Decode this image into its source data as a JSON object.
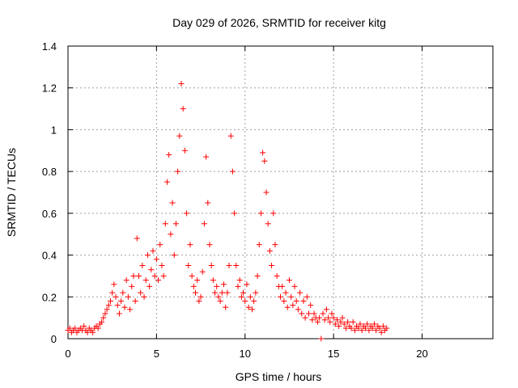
{
  "chart_data": {
    "type": "scatter",
    "title": "Day 029 of 2026, SRMTID for receiver kitg",
    "xlabel": "GPS time / hours",
    "ylabel": "SRMTID / TECUs",
    "xlim": [
      0,
      24
    ],
    "ylim": [
      0,
      1.4
    ],
    "x_ticks": [
      0,
      5,
      10,
      15,
      20
    ],
    "x_tick_labels": [
      "0",
      "5",
      "10",
      "15",
      "20"
    ],
    "y_ticks": [
      0,
      0.2,
      0.4,
      0.6,
      0.8,
      1,
      1.2,
      1.4
    ],
    "y_tick_labels": [
      "0",
      "0.2",
      "0.4",
      "0.6",
      "0.8",
      "1",
      "1.2",
      "1.4"
    ],
    "grid": true,
    "marker": "+",
    "color": "#ff0000",
    "series": [
      {
        "name": "SRMTID",
        "points": [
          [
            0.0,
            0.04
          ],
          [
            0.1,
            0.05
          ],
          [
            0.2,
            0.03
          ],
          [
            0.3,
            0.04
          ],
          [
            0.4,
            0.05
          ],
          [
            0.5,
            0.03
          ],
          [
            0.6,
            0.04
          ],
          [
            0.7,
            0.05
          ],
          [
            0.8,
            0.04
          ],
          [
            0.9,
            0.06
          ],
          [
            1.0,
            0.04
          ],
          [
            1.1,
            0.03
          ],
          [
            1.2,
            0.05
          ],
          [
            1.3,
            0.04
          ],
          [
            1.4,
            0.03
          ],
          [
            1.5,
            0.05
          ],
          [
            1.6,
            0.06
          ],
          [
            1.7,
            0.05
          ],
          [
            1.8,
            0.07
          ],
          [
            1.9,
            0.08
          ],
          [
            2.0,
            0.1
          ],
          [
            2.1,
            0.12
          ],
          [
            2.2,
            0.14
          ],
          [
            2.3,
            0.16
          ],
          [
            2.4,
            0.18
          ],
          [
            2.5,
            0.22
          ],
          [
            2.6,
            0.26
          ],
          [
            2.7,
            0.2
          ],
          [
            2.8,
            0.16
          ],
          [
            2.9,
            0.12
          ],
          [
            3.0,
            0.18
          ],
          [
            3.1,
            0.22
          ],
          [
            3.2,
            0.15
          ],
          [
            3.3,
            0.28
          ],
          [
            3.4,
            0.2
          ],
          [
            3.5,
            0.14
          ],
          [
            3.6,
            0.25
          ],
          [
            3.7,
            0.3
          ],
          [
            3.8,
            0.18
          ],
          [
            3.9,
            0.48
          ],
          [
            4.0,
            0.3
          ],
          [
            4.1,
            0.22
          ],
          [
            4.2,
            0.35
          ],
          [
            4.3,
            0.2
          ],
          [
            4.4,
            0.28
          ],
          [
            4.5,
            0.4
          ],
          [
            4.6,
            0.25
          ],
          [
            4.7,
            0.33
          ],
          [
            4.8,
            0.42
          ],
          [
            4.9,
            0.3
          ],
          [
            5.0,
            0.38
          ],
          [
            5.1,
            0.28
          ],
          [
            5.2,
            0.45
          ],
          [
            5.3,
            0.35
          ],
          [
            5.4,
            0.3
          ],
          [
            5.5,
            0.55
          ],
          [
            5.6,
            0.75
          ],
          [
            5.7,
            0.88
          ],
          [
            5.8,
            0.5
          ],
          [
            5.9,
            0.65
          ],
          [
            6.0,
            0.4
          ],
          [
            6.1,
            0.55
          ],
          [
            6.2,
            0.8
          ],
          [
            6.3,
            0.97
          ],
          [
            6.4,
            1.22
          ],
          [
            6.5,
            1.1
          ],
          [
            6.6,
            0.9
          ],
          [
            6.7,
            0.6
          ],
          [
            6.8,
            0.35
          ],
          [
            6.9,
            0.45
          ],
          [
            7.0,
            0.3
          ],
          [
            7.1,
            0.25
          ],
          [
            7.2,
            0.22
          ],
          [
            7.3,
            0.28
          ],
          [
            7.4,
            0.18
          ],
          [
            7.5,
            0.2
          ],
          [
            7.6,
            0.32
          ],
          [
            7.7,
            0.55
          ],
          [
            7.8,
            0.87
          ],
          [
            7.9,
            0.65
          ],
          [
            8.0,
            0.45
          ],
          [
            8.1,
            0.35
          ],
          [
            8.2,
            0.28
          ],
          [
            8.3,
            0.22
          ],
          [
            8.4,
            0.25
          ],
          [
            8.5,
            0.2
          ],
          [
            8.6,
            0.18
          ],
          [
            8.7,
            0.22
          ],
          [
            8.8,
            0.26
          ],
          [
            8.9,
            0.15
          ],
          [
            9.0,
            0.22
          ],
          [
            9.1,
            0.35
          ],
          [
            9.2,
            0.97
          ],
          [
            9.3,
            0.8
          ],
          [
            9.4,
            0.6
          ],
          [
            9.5,
            0.35
          ],
          [
            9.6,
            0.25
          ],
          [
            9.7,
            0.28
          ],
          [
            9.8,
            0.2
          ],
          [
            9.9,
            0.22
          ],
          [
            10.0,
            0.18
          ],
          [
            10.1,
            0.26
          ],
          [
            10.2,
            0.15
          ],
          [
            10.3,
            0.2
          ],
          [
            10.4,
            0.14
          ],
          [
            10.5,
            0.18
          ],
          [
            10.6,
            0.22
          ],
          [
            10.7,
            0.3
          ],
          [
            10.8,
            0.45
          ],
          [
            10.9,
            0.6
          ],
          [
            11.0,
            0.89
          ],
          [
            11.1,
            0.85
          ],
          [
            11.2,
            0.7
          ],
          [
            11.3,
            0.55
          ],
          [
            11.4,
            0.42
          ],
          [
            11.5,
            0.35
          ],
          [
            11.6,
            0.6
          ],
          [
            11.7,
            0.45
          ],
          [
            11.8,
            0.3
          ],
          [
            11.9,
            0.25
          ],
          [
            12.0,
            0.2
          ],
          [
            12.1,
            0.25
          ],
          [
            12.2,
            0.18
          ],
          [
            12.3,
            0.22
          ],
          [
            12.4,
            0.15
          ],
          [
            12.5,
            0.28
          ],
          [
            12.6,
            0.2
          ],
          [
            12.7,
            0.16
          ],
          [
            12.8,
            0.25
          ],
          [
            12.9,
            0.18
          ],
          [
            13.0,
            0.14
          ],
          [
            13.1,
            0.22
          ],
          [
            13.2,
            0.12
          ],
          [
            13.3,
            0.18
          ],
          [
            13.4,
            0.1
          ],
          [
            13.5,
            0.2
          ],
          [
            13.6,
            0.12
          ],
          [
            13.7,
            0.16
          ],
          [
            13.8,
            0.09
          ],
          [
            13.9,
            0.12
          ],
          [
            14.0,
            0.1
          ],
          [
            14.1,
            0.08
          ],
          [
            14.2,
            0.1
          ],
          [
            14.3,
            0.0
          ],
          [
            14.4,
            0.12
          ],
          [
            14.5,
            0.09
          ],
          [
            14.6,
            0.14
          ],
          [
            14.7,
            0.1
          ],
          [
            14.8,
            0.08
          ],
          [
            14.9,
            0.12
          ],
          [
            15.0,
            0.1
          ],
          [
            15.1,
            0.07
          ],
          [
            15.2,
            0.09
          ],
          [
            15.3,
            0.06
          ],
          [
            15.4,
            0.08
          ],
          [
            15.5,
            0.1
          ],
          [
            15.6,
            0.07
          ],
          [
            15.7,
            0.05
          ],
          [
            15.8,
            0.08
          ],
          [
            15.9,
            0.06
          ],
          [
            16.0,
            0.05
          ],
          [
            16.1,
            0.08
          ],
          [
            16.2,
            0.04
          ],
          [
            16.3,
            0.06
          ],
          [
            16.4,
            0.05
          ],
          [
            16.5,
            0.07
          ],
          [
            16.6,
            0.04
          ],
          [
            16.7,
            0.06
          ],
          [
            16.8,
            0.05
          ],
          [
            16.9,
            0.07
          ],
          [
            17.0,
            0.04
          ],
          [
            17.1,
            0.06
          ],
          [
            17.2,
            0.05
          ],
          [
            17.3,
            0.07
          ],
          [
            17.4,
            0.04
          ],
          [
            17.5,
            0.06
          ],
          [
            17.6,
            0.05
          ],
          [
            17.7,
            0.03
          ],
          [
            17.8,
            0.06
          ],
          [
            17.9,
            0.04
          ],
          [
            18.0,
            0.05
          ]
        ]
      }
    ]
  }
}
